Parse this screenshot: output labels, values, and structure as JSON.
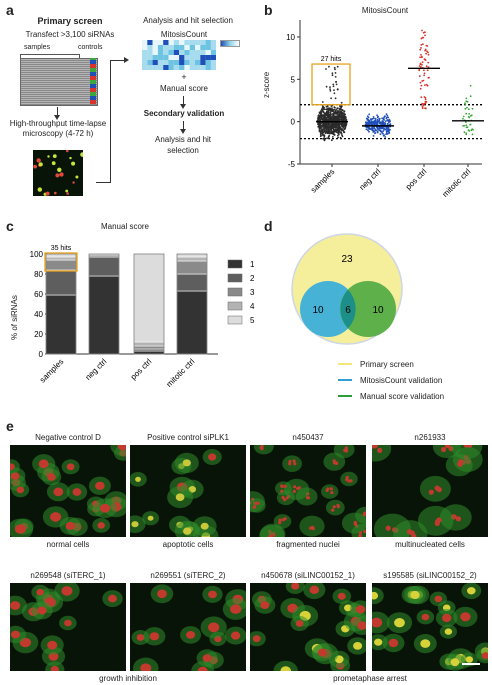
{
  "panels": {
    "a": "a",
    "b": "b",
    "c": "c",
    "d": "d",
    "e": "e"
  },
  "panel_a": {
    "primary_title": "Primary screen",
    "transfect": "Transfect >3,100 siRNAs",
    "samples": "samples",
    "controls": "controls",
    "microscopy": "High-throughput time-lapse microscopy (4-72 h)",
    "analysis_title": "Analysis and hit selection",
    "mitosiscount": "MitosisCount",
    "plus": "+",
    "manual_score": "Manual score",
    "secondary": "Secondary validation",
    "analysis_end": "Analysis and hit selection"
  },
  "colors": {
    "samples": "#2b2b2b",
    "neg_ctrl": "#1f4fb8",
    "pos_ctrl": "#d9342b",
    "mitotic_ctrl": "#3aa83a",
    "highlight": "#e8a21c",
    "venn_primary": "#f5ee9a",
    "venn_mitosis": "#46b3d6",
    "venn_manual": "#5db04a",
    "venn_overlap": "#1c8f88"
  },
  "chart_b": {
    "title": "MitosisCount",
    "ylabel": "z-score",
    "yticks": [
      "10",
      "5",
      "0",
      "-5"
    ],
    "hits_label": "27 hits",
    "categories": [
      "samples",
      "neg ctrl",
      "pos ctrl",
      "mitotic ctrl"
    ]
  },
  "chart_c": {
    "title": "Manual score",
    "ylabel": "% of siRNAs",
    "yticks": [
      "100",
      "80",
      "60",
      "40",
      "20",
      "0"
    ],
    "hits_label": "35 hits",
    "categories": [
      "samples",
      "neg ctrl",
      "pos ctrl",
      "mitotic ctrl"
    ],
    "legend": [
      "1",
      "2",
      "3",
      "4",
      "5"
    ]
  },
  "venn": {
    "primary_only": "23",
    "mitosis_only": "10",
    "overlap": "6",
    "manual_only": "10",
    "legend": [
      "Primary screen",
      "MitosisCount validation",
      "Manual score validation"
    ]
  },
  "panel_e": {
    "row1": [
      {
        "title": "Negative control D",
        "caption": "normal cells"
      },
      {
        "title": "Positive control siPLK1",
        "caption": "apoptotic cells"
      },
      {
        "title": "n450437",
        "caption": "fragmented nuclei"
      },
      {
        "title": "n261933",
        "caption": "multinucleated cells"
      }
    ],
    "row2": [
      {
        "title": "n269548 (siTERC_1)"
      },
      {
        "title": "n269551 (siTERC_2)"
      },
      {
        "title": "n450678 (siLINC00152_1)"
      },
      {
        "title": "s195585 (siLINC00152_2)"
      }
    ],
    "row2_captions": [
      "growth inhibition",
      "prometaphase arrest"
    ]
  },
  "chart_data": [
    {
      "type": "scatter",
      "title": "MitosisCount",
      "ylabel": "z-score",
      "xlabel": "",
      "categories": [
        "samples",
        "neg ctrl",
        "pos ctrl",
        "mitotic ctrl"
      ],
      "ylim": [
        -5,
        12
      ],
      "thresholds": [
        2,
        -2
      ],
      "series": [
        {
          "name": "samples",
          "median": 0,
          "range": [
            -2.2,
            6.5
          ]
        },
        {
          "name": "neg ctrl",
          "median": -0.5,
          "range": [
            -2,
            1.5
          ]
        },
        {
          "name": "pos ctrl",
          "median": 6.3,
          "range": [
            1.5,
            11
          ]
        },
        {
          "name": "mitotic ctrl",
          "median": 0.1,
          "range": [
            -1.5,
            5.5
          ]
        }
      ]
    },
    {
      "type": "bar",
      "title": "Manual score",
      "ylabel": "% of siRNAs",
      "xlabel": "",
      "stacked": true,
      "categories": [
        "samples",
        "neg ctrl",
        "pos ctrl",
        "mitotic ctrl"
      ],
      "ylim": [
        0,
        100
      ],
      "series": [
        {
          "name": "1",
          "values": [
            59,
            78,
            3,
            63
          ]
        },
        {
          "name": "2",
          "values": [
            25,
            19,
            2,
            17
          ]
        },
        {
          "name": "3",
          "values": [
            10,
            2,
            3,
            13
          ]
        },
        {
          "name": "4",
          "values": [
            3,
            1,
            4,
            4
          ]
        },
        {
          "name": "5",
          "values": [
            3,
            0,
            88,
            3
          ]
        }
      ]
    }
  ]
}
